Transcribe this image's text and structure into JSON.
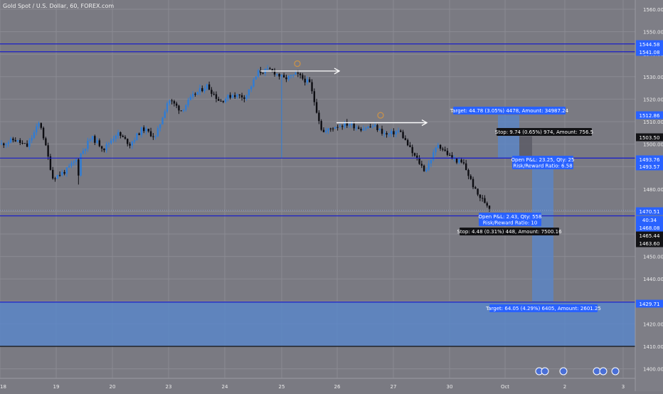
{
  "symbol_title": "Gold Spot / U.S. Dollar, 60, FOREX.com",
  "colors": {
    "background": "#7a7a82",
    "axis_bg": "#7e7e86",
    "grid": "#8a8a92",
    "candle_up": "#2e7cd6",
    "candle_down": "#0d0d12",
    "hline": "#1a1fc8",
    "zone": "#5a86c8",
    "label_blue": "#2962ff",
    "label_dark": "#131316",
    "arrow": "#ffffff",
    "icon": "#c8924a"
  },
  "chart_data": {
    "type": "candlestick",
    "x_ticks": [
      "18",
      "19",
      "20",
      "23",
      "24",
      "25",
      "26",
      "27",
      "30",
      "Oct",
      "2",
      "3"
    ],
    "y_ticks": [
      1400,
      1410,
      1420,
      1430,
      1440,
      1450,
      1460,
      1470,
      1480,
      1490,
      1500,
      1510,
      1520,
      1530,
      1540,
      1550,
      1560
    ],
    "ylim": [
      1396,
      1564
    ],
    "price_labels": [
      {
        "text": "1544.58",
        "style": "blue"
      },
      {
        "text": "1541.08",
        "style": "blue"
      },
      {
        "text": "1512.86",
        "style": "blue"
      },
      {
        "text": "1503.50",
        "style": "dark"
      },
      {
        "text": "1493.76",
        "style": "blue"
      },
      {
        "text": "1493.57",
        "style": "blue"
      },
      {
        "text": "1470.51",
        "style": "blue"
      },
      {
        "text": "40:34",
        "style": "blue"
      },
      {
        "text": "1468.08",
        "style": "blue"
      },
      {
        "text": "1465.44",
        "style": "dark"
      },
      {
        "text": "1463.60",
        "style": "dark"
      },
      {
        "text": "1429.71",
        "style": "blue"
      }
    ],
    "horizontal_lines": [
      1544.58,
      1541.08,
      1493.76,
      1468.08,
      1429.71,
      1410
    ],
    "position_notes": [
      {
        "lines": [
          "Target: 44.78 (3.05%) 4478, Amount: 34987.24"
        ],
        "style": "blue"
      },
      {
        "lines": [
          "Stop: 9.74 (0.65%) 974, Amount: 756.5"
        ],
        "style": "dark"
      },
      {
        "lines": [
          "Open P&L: 23.25, Qty: 25",
          "Risk/Reward Ratio: 6.58"
        ],
        "style": "blue"
      },
      {
        "lines": [
          "Open P&L: 2.43, Qty: 558",
          "Risk/Reward Ratio: 10"
        ],
        "style": "blue"
      },
      {
        "lines": [
          "Stop: 4.48 (0.31%) 448, Amount: 7500.16"
        ],
        "style": "dark"
      },
      {
        "lines": [
          "Target: 64.05 (4.29%) 6405, Amount: 2601.25"
        ],
        "style": "blue"
      }
    ],
    "close_path": [
      1500,
      1502,
      1499,
      1510,
      1485,
      1488,
      1494,
      1503,
      1498,
      1505,
      1500,
      1507,
      1503,
      1520,
      1515,
      1522,
      1526,
      1519,
      1522,
      1521,
      1532,
      1533,
      1529,
      1531,
      1527,
      1505,
      1508,
      1509,
      1507,
      1508,
      1504,
      1506,
      1496,
      1488,
      1500,
      1494,
      1491,
      1478,
      1472
    ]
  }
}
